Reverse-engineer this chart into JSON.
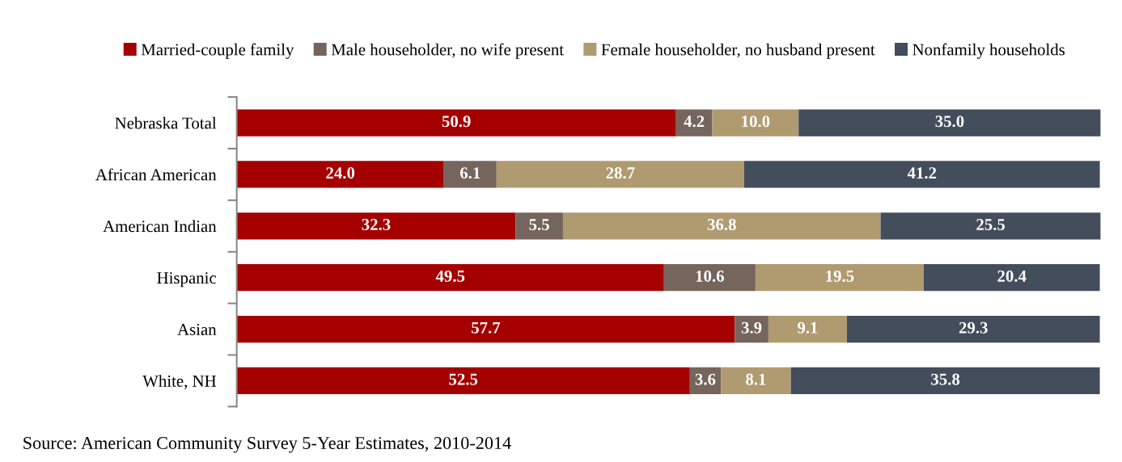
{
  "chart_data": {
    "type": "bar",
    "orientation": "horizontal",
    "stacked": true,
    "legend": "top",
    "grid": false,
    "tick_labels": "y",
    "categories": [
      "Nebraska Total",
      "African American",
      "American Indian",
      "Hispanic",
      "Asian",
      "White, NH"
    ],
    "series": [
      {
        "name": "Married-couple family",
        "color": "#a50000",
        "values": [
          50.9,
          24.0,
          32.3,
          49.5,
          57.7,
          52.5
        ],
        "value_labels": [
          "50.9",
          "24.0",
          "32.3",
          "49.5",
          "57.7",
          "52.5"
        ]
      },
      {
        "name": "Male householder, no wife present",
        "color": "#75655c",
        "values": [
          4.2,
          6.1,
          5.5,
          10.6,
          3.9,
          3.6
        ],
        "value_labels": [
          "4.2",
          "6.1",
          "5.5",
          "10.6",
          "3.9",
          "3.6"
        ]
      },
      {
        "name": "Female householder, no husband present",
        "color": "#b09a70",
        "values": [
          10.0,
          28.7,
          36.8,
          19.5,
          9.1,
          8.1
        ],
        "value_labels": [
          "10.0",
          "28.7",
          "36.8",
          "19.5",
          "9.1",
          "8.1"
        ]
      },
      {
        "name": "Nonfamily households",
        "color": "#434d5c",
        "values": [
          35.0,
          41.2,
          25.5,
          20.4,
          29.3,
          35.8
        ],
        "value_labels": [
          "35.0",
          "41.2",
          "25.5",
          "20.4",
          "29.3",
          "35.8"
        ]
      }
    ],
    "annotations": [
      "Source: American Community Survey 5-Year Estimates, 2010-2014"
    ]
  }
}
